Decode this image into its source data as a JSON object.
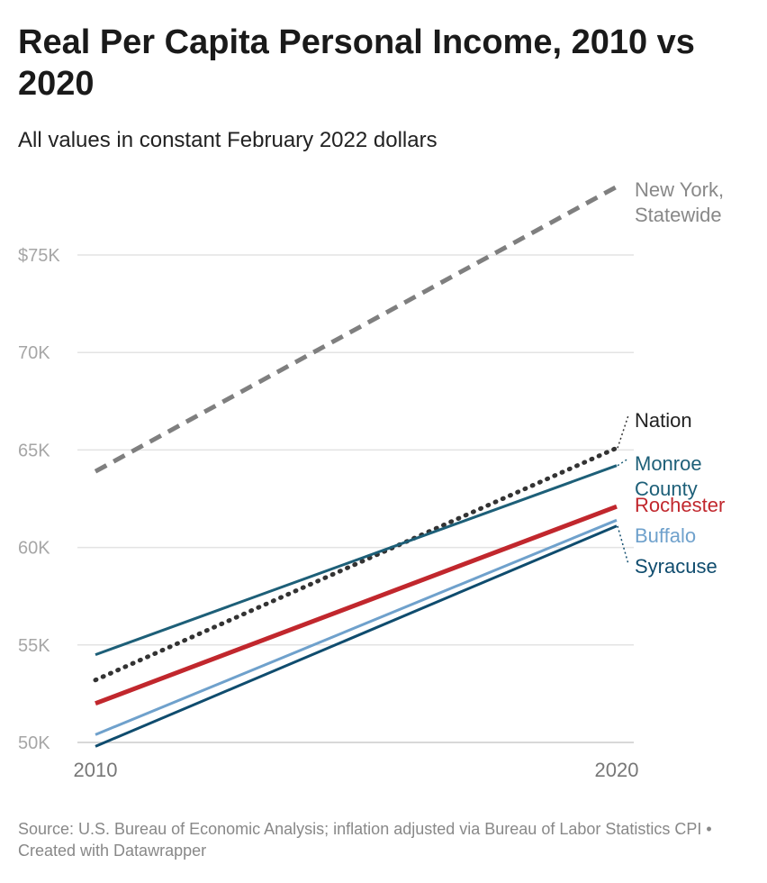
{
  "header": {
    "title": "Real Per Capita Personal Income, 2010 vs 2020",
    "subtitle": "All values in constant February 2022 dollars"
  },
  "footer": {
    "source": "Source: U.S. Bureau of Economic Analysis; inflation adjusted via Bureau of Labor Statistics CPI • Created with Datawrapper"
  },
  "chart_data": {
    "type": "line",
    "title": "Real Per Capita Personal Income, 2010 vs 2020",
    "subtitle": "All values in constant February 2022 dollars",
    "x": [
      2010,
      2020
    ],
    "x_tick_labels": [
      "2010",
      "2020"
    ],
    "ylim": [
      50000,
      80000
    ],
    "y_ticks": [
      50000,
      55000,
      60000,
      65000,
      70000,
      75000
    ],
    "y_tick_labels": [
      "50K",
      "55K",
      "60K",
      "65K",
      "70K",
      "$75K"
    ],
    "grid": true,
    "series": [
      {
        "name": "New York, Statewide",
        "label_lines": [
          "New York,",
          "Statewide"
        ],
        "values": [
          63900,
          78500
        ],
        "color": "#7f7f7f",
        "style": "dashed",
        "label_color": "#888888"
      },
      {
        "name": "Nation",
        "label_lines": [
          "Nation"
        ],
        "values": [
          53200,
          65100
        ],
        "color": "#333333",
        "style": "dotted",
        "label_color": "#222222"
      },
      {
        "name": "Monroe County",
        "label_lines": [
          "Monroe",
          "County"
        ],
        "values": [
          54500,
          64200
        ],
        "color": "#1d5f78",
        "style": "solid",
        "label_color": "#1d5f78"
      },
      {
        "name": "Rochester",
        "label_lines": [
          "Rochester"
        ],
        "values": [
          52000,
          62100
        ],
        "color": "#c1272d",
        "style": "thick",
        "label_color": "#c1272d"
      },
      {
        "name": "Buffalo",
        "label_lines": [
          "Buffalo"
        ],
        "values": [
          50400,
          61400
        ],
        "color": "#6fa1cc",
        "style": "solid",
        "label_color": "#6fa1cc"
      },
      {
        "name": "Syracuse",
        "label_lines": [
          "Syracuse"
        ],
        "values": [
          49800,
          61100
        ],
        "color": "#0f4c6e",
        "style": "solid",
        "label_color": "#0f4c6e"
      }
    ]
  }
}
